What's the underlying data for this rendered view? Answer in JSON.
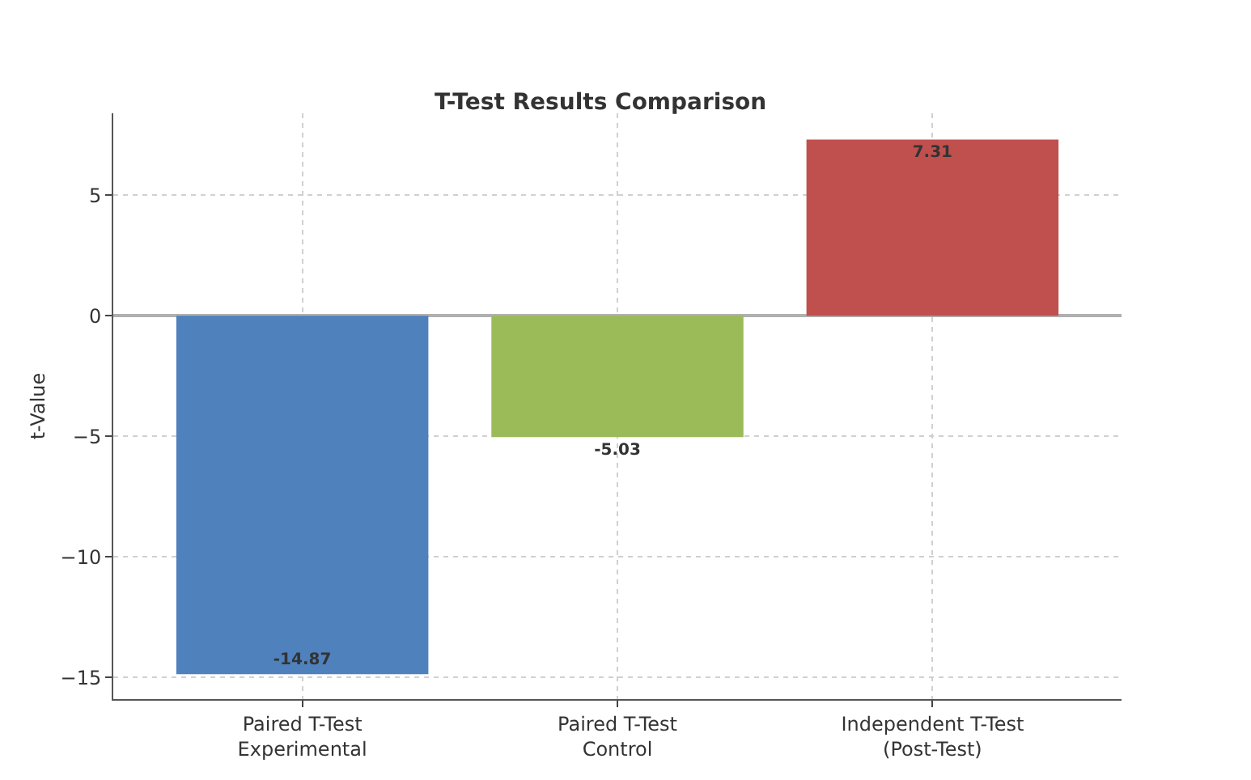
{
  "chart_data": {
    "type": "bar",
    "title": "T-Test Results Comparison",
    "ylabel": "t-Value",
    "categories": [
      "Paired T-Test\nExperimental",
      "Paired T-Test\nControl",
      "Independent T-Test\n(Post-Test)"
    ],
    "values": [
      -14.87,
      -5.03,
      7.31
    ],
    "colors": [
      "#4f81bd",
      "#9bbb59",
      "#c0504d"
    ],
    "ylim": [
      -15.9,
      8.4
    ],
    "yticks": [
      {
        "value": -15,
        "label": "−15"
      },
      {
        "value": -10,
        "label": "−10"
      },
      {
        "value": -5,
        "label": "−5"
      },
      0,
      5
    ],
    "grid": true,
    "data_labels": true
  }
}
